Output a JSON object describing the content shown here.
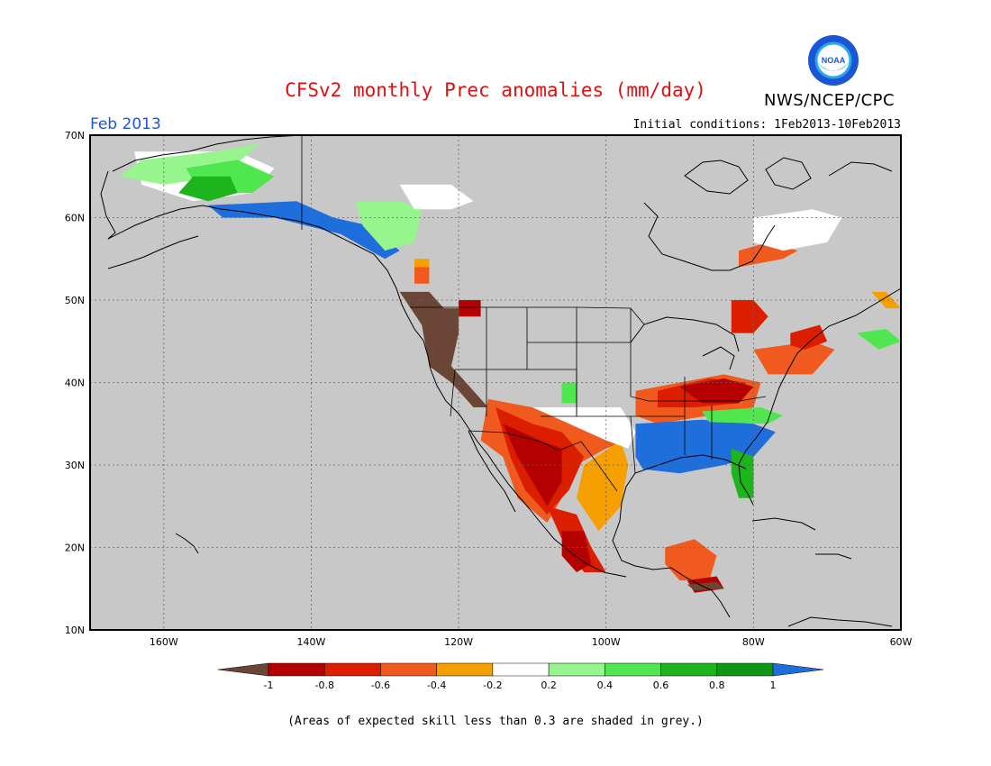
{
  "header": {
    "title": "CFSv2 monthly Prec anomalies (mm/day)",
    "agency": "NWS/NCEP/CPC",
    "logo_text": "NOAA",
    "period": "Feb 2013",
    "initial_conditions": "Initial conditions: 1Feb2013-10Feb2013"
  },
  "footer": {
    "note": "(Areas of expected skill less than 0.3 are shaded in grey.)"
  },
  "map": {
    "projection": "lat-lon",
    "lon_range": [
      -170,
      -60
    ],
    "lat_range": [
      10,
      70
    ],
    "background_color": "#c8c8c8",
    "x_ticks": [
      "160W",
      "140W",
      "120W",
      "100W",
      "80W",
      "60W"
    ],
    "y_ticks": [
      "10N",
      "20N",
      "30N",
      "40N",
      "50N",
      "60N",
      "70N"
    ]
  },
  "colorbar": {
    "labels": [
      "-1",
      "-0.8",
      "-0.6",
      "-0.4",
      "-0.2",
      "0.2",
      "0.4",
      "0.6",
      "0.8",
      "1"
    ],
    "colors": [
      "#6b4636",
      "#b40000",
      "#dc1e00",
      "#f05a1e",
      "#f5a000",
      "#ffffff",
      "#96f58c",
      "#50e650",
      "#1eb41e",
      "#0f9614",
      "#1e6edc"
    ]
  }
}
